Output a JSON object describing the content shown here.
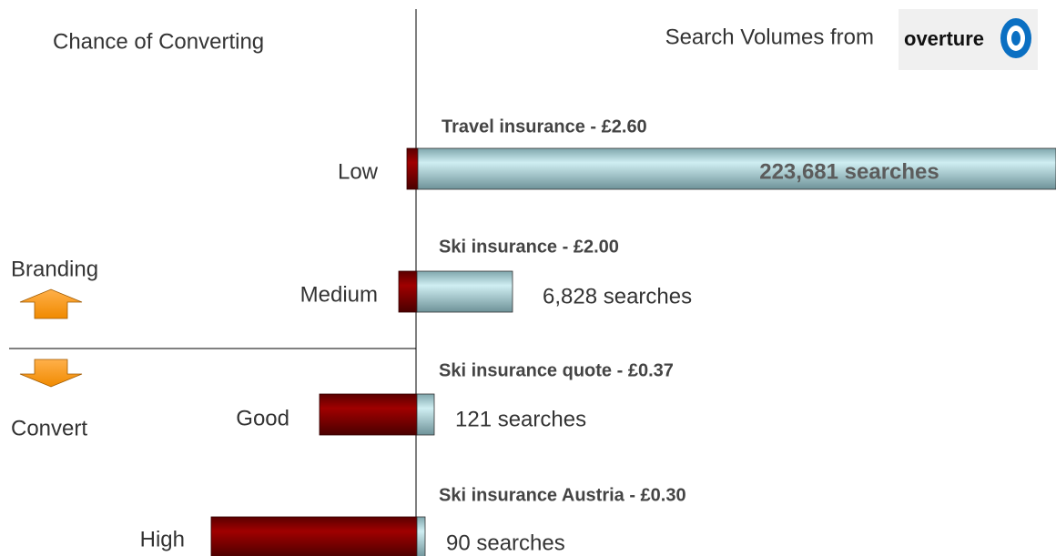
{
  "header": {
    "left_title": "Chance of  Converting",
    "right_title": "Search Volumes from",
    "logo": "overture"
  },
  "side_labels": {
    "top": "Branding",
    "bottom": "Convert"
  },
  "rows": [
    {
      "level": "Low",
      "keyword": "Travel insurance - £2.60",
      "searches": "223,681 searches"
    },
    {
      "level": "Medium",
      "keyword": "Ski insurance - £2.00",
      "searches": "6,828 searches"
    },
    {
      "level": "Good",
      "keyword": "Ski insurance quote - £0.37",
      "searches": "121 searches"
    },
    {
      "level": "High",
      "keyword": "Ski insurance Austria - £0.30",
      "searches": "90 searches"
    }
  ]
}
